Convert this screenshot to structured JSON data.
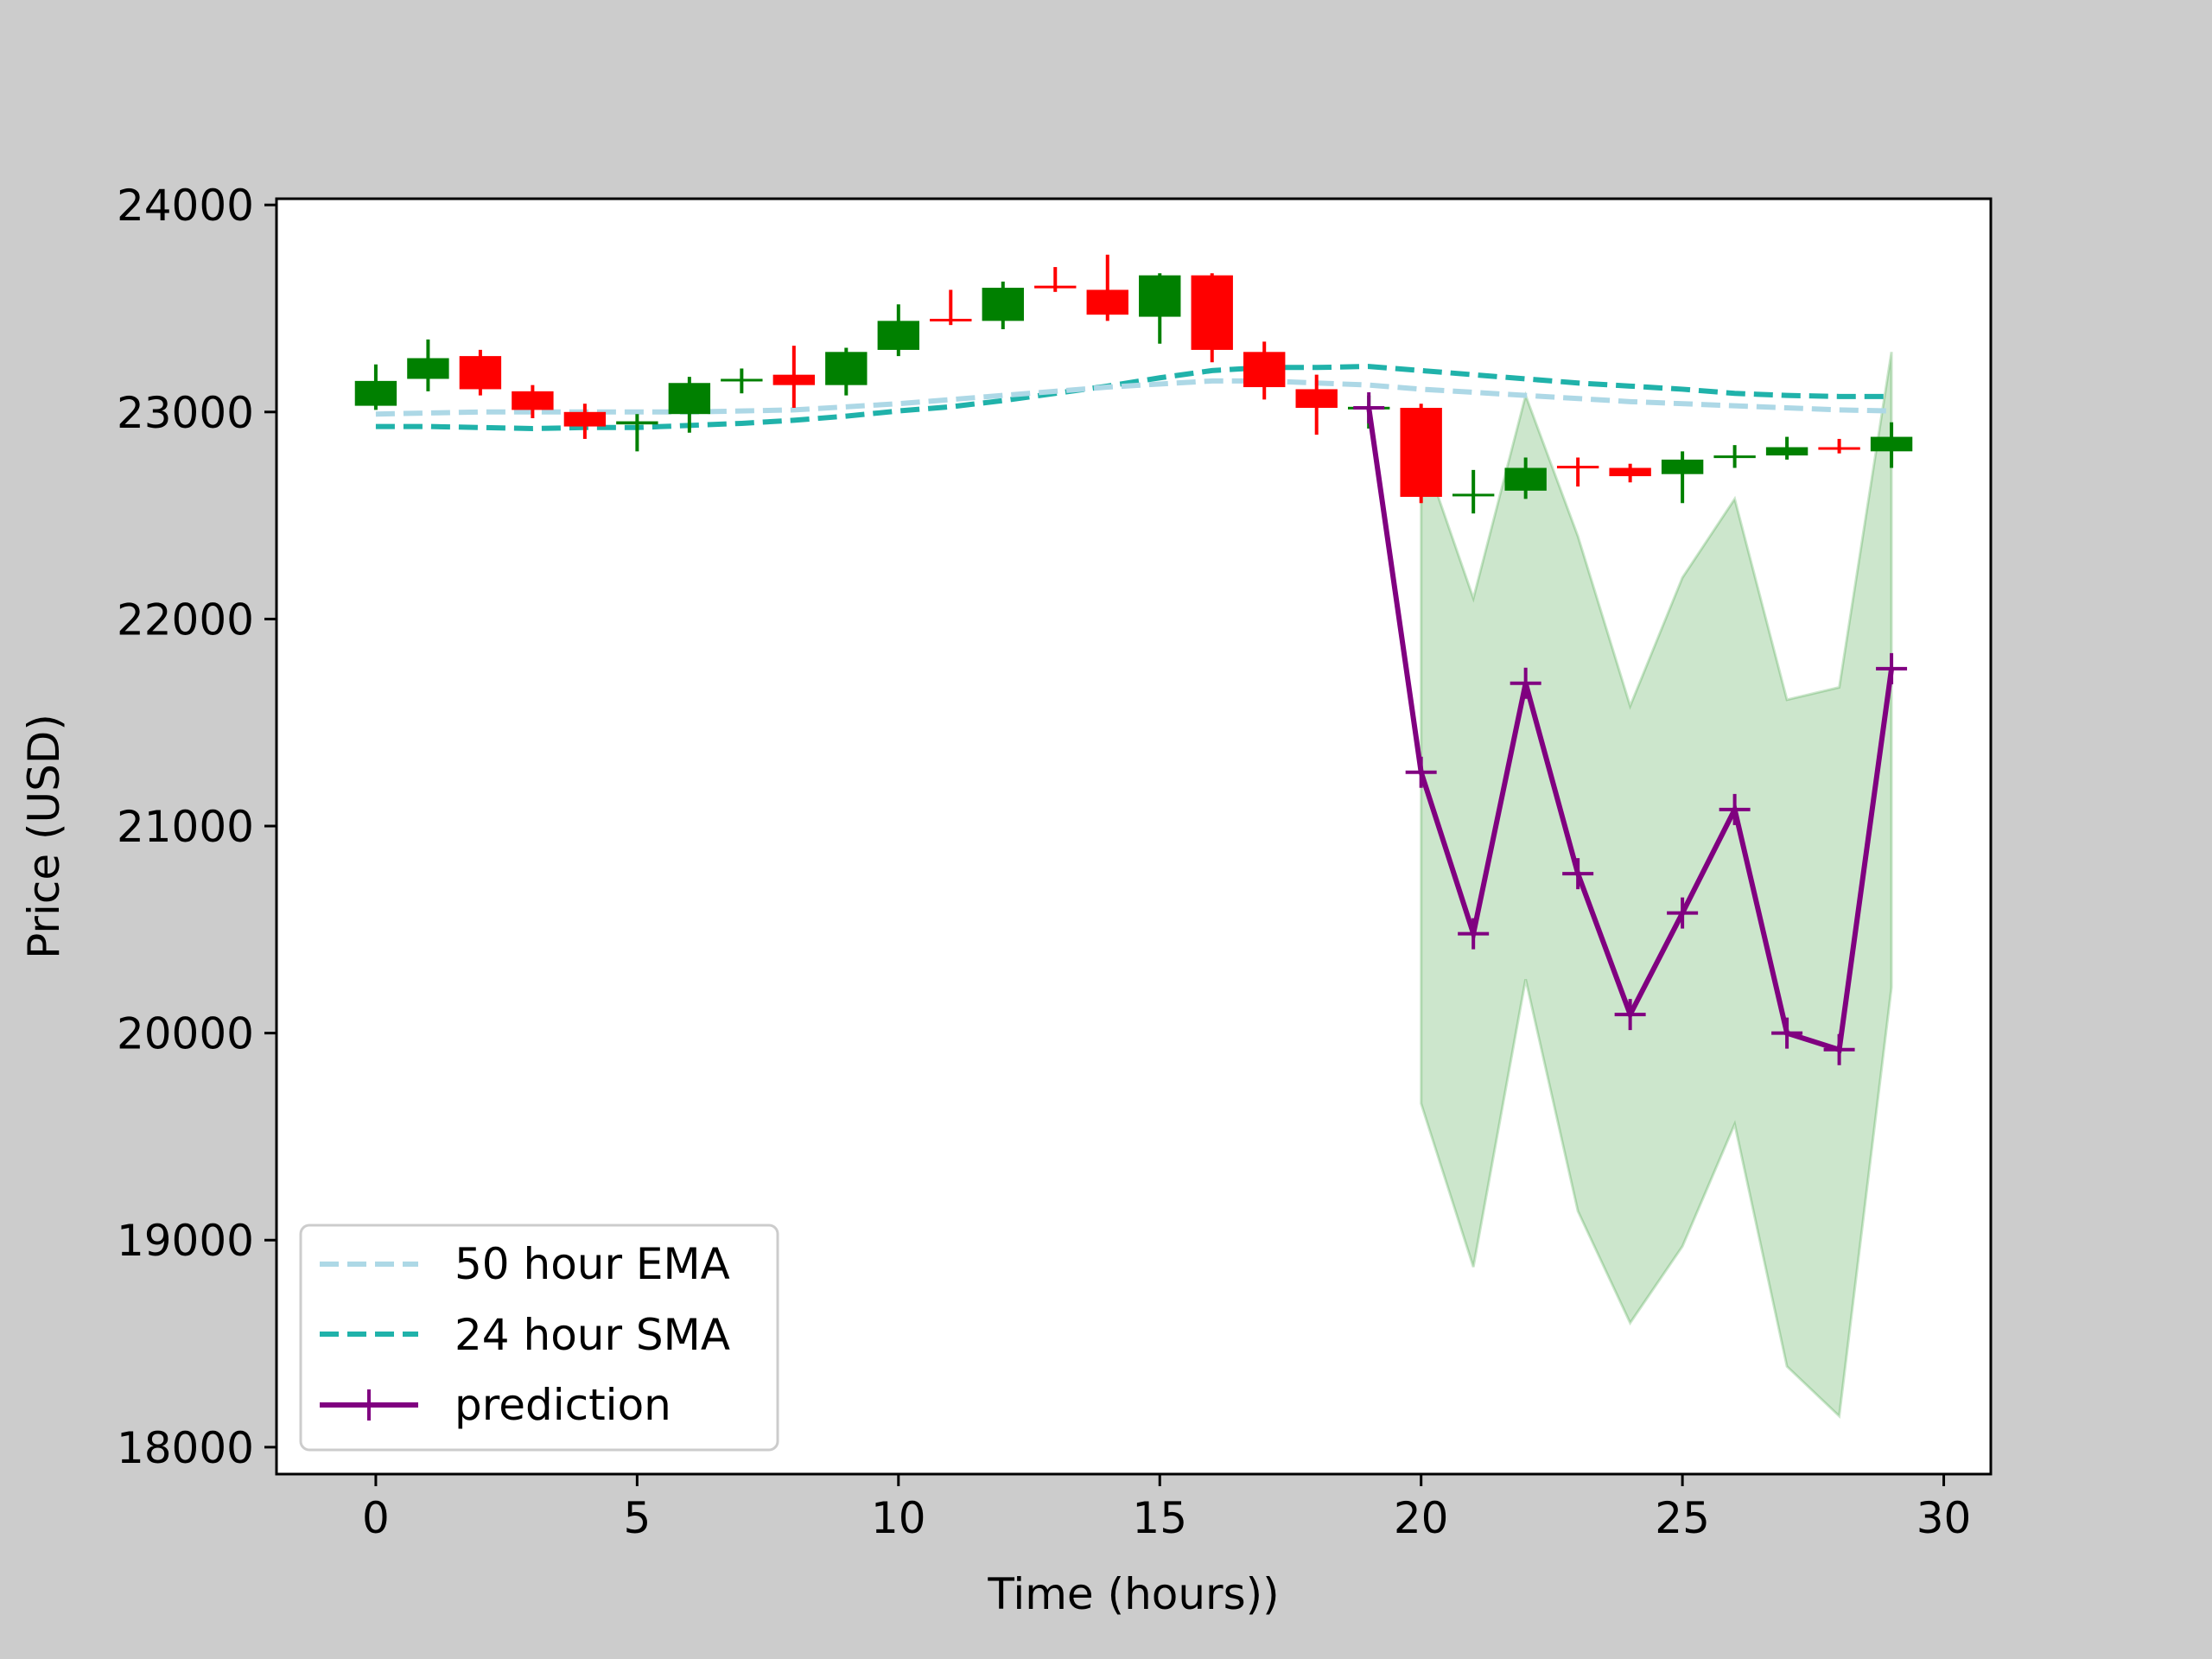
{
  "chart_data": {
    "type": "candlestick",
    "title": "",
    "xlabel": "Time (hours))",
    "ylabel": "Price (USD)",
    "xlim": [
      -1.9,
      30.9
    ],
    "ylim": [
      17870,
      24030
    ],
    "x_ticks": [
      0,
      5,
      10,
      15,
      20,
      25,
      30
    ],
    "y_ticks": [
      18000,
      19000,
      20000,
      21000,
      22000,
      23000,
      24000
    ],
    "grid": false,
    "colors": {
      "background": "#cccccc",
      "plot_bg": "#ffffff",
      "up": "#008000",
      "down": "#ff0000",
      "ema": "#add8e6",
      "sma": "#20b2aa",
      "prediction": "#800080",
      "band": "#008000"
    },
    "candles": [
      {
        "t": 0,
        "open": 23030,
        "close": 23150,
        "high": 23230,
        "low": 23010
      },
      {
        "t": 1,
        "open": 23160,
        "close": 23260,
        "high": 23350,
        "low": 23100
      },
      {
        "t": 2,
        "open": 23270,
        "close": 23110,
        "high": 23300,
        "low": 23080
      },
      {
        "t": 3,
        "open": 23100,
        "close": 23010,
        "high": 23130,
        "low": 22970
      },
      {
        "t": 4,
        "open": 23000,
        "close": 22930,
        "high": 23040,
        "low": 22870
      },
      {
        "t": 5,
        "open": 22940,
        "close": 22955,
        "high": 22990,
        "low": 22810
      },
      {
        "t": 6,
        "open": 22990,
        "close": 23140,
        "high": 23170,
        "low": 22900
      },
      {
        "t": 7,
        "open": 23150,
        "close": 23160,
        "high": 23210,
        "low": 23090
      },
      {
        "t": 8,
        "open": 23180,
        "close": 23130,
        "high": 23320,
        "low": 23020
      },
      {
        "t": 9,
        "open": 23130,
        "close": 23290,
        "high": 23310,
        "low": 23080
      },
      {
        "t": 10,
        "open": 23300,
        "close": 23440,
        "high": 23520,
        "low": 23270
      },
      {
        "t": 11,
        "open": 23450,
        "close": 23440,
        "high": 23590,
        "low": 23420
      },
      {
        "t": 12,
        "open": 23440,
        "close": 23600,
        "high": 23630,
        "low": 23400
      },
      {
        "t": 13,
        "open": 23610,
        "close": 23600,
        "high": 23700,
        "low": 23580
      },
      {
        "t": 14,
        "open": 23590,
        "close": 23470,
        "high": 23760,
        "low": 23440
      },
      {
        "t": 15,
        "open": 23460,
        "close": 23660,
        "high": 23670,
        "low": 23330
      },
      {
        "t": 16,
        "open": 23660,
        "close": 23300,
        "high": 23670,
        "low": 23240
      },
      {
        "t": 17,
        "open": 23290,
        "close": 23120,
        "high": 23340,
        "low": 23060
      },
      {
        "t": 18,
        "open": 23110,
        "close": 23020,
        "high": 23180,
        "low": 22890
      },
      {
        "t": 19,
        "open": 23020,
        "close": 23025,
        "high": 23080,
        "low": 22920
      },
      {
        "t": 20,
        "open": 23020,
        "close": 22590,
        "high": 23040,
        "low": 22560
      },
      {
        "t": 21,
        "open": 22600,
        "close": 22605,
        "high": 22720,
        "low": 22510
      },
      {
        "t": 22,
        "open": 22620,
        "close": 22730,
        "high": 22780,
        "low": 22580
      },
      {
        "t": 23,
        "open": 22740,
        "close": 22735,
        "high": 22780,
        "low": 22640
      },
      {
        "t": 24,
        "open": 22730,
        "close": 22690,
        "high": 22750,
        "low": 22660
      },
      {
        "t": 25,
        "open": 22700,
        "close": 22770,
        "high": 22810,
        "low": 22560
      },
      {
        "t": 26,
        "open": 22780,
        "close": 22790,
        "high": 22840,
        "low": 22730
      },
      {
        "t": 27,
        "open": 22790,
        "close": 22830,
        "high": 22880,
        "low": 22770
      },
      {
        "t": 28,
        "open": 22830,
        "close": 22820,
        "high": 22870,
        "low": 22800
      },
      {
        "t": 29,
        "open": 22810,
        "close": 22880,
        "high": 22950,
        "low": 22730
      }
    ],
    "series": [
      {
        "name": "50 hour EMA",
        "style": "dashed",
        "x": [
          0,
          2,
          4,
          6,
          8,
          10,
          12,
          14,
          16,
          17,
          18,
          19,
          20,
          22,
          24,
          26,
          28,
          29
        ],
        "values": [
          22990,
          23000,
          23000,
          23000,
          23010,
          23040,
          23080,
          23120,
          23150,
          23150,
          23140,
          23130,
          23110,
          23080,
          23050,
          23030,
          23010,
          23005
        ]
      },
      {
        "name": "24 hour SMA",
        "style": "dashed",
        "x": [
          0,
          1,
          2,
          3,
          4,
          5,
          6,
          7,
          8,
          9,
          10,
          11,
          12,
          13,
          14,
          15,
          16,
          17,
          18,
          19,
          20,
          21,
          22,
          23,
          24,
          25,
          26,
          27,
          28,
          29
        ],
        "values": [
          22930,
          22930,
          22925,
          22920,
          22925,
          22925,
          22935,
          22945,
          22960,
          22980,
          23005,
          23025,
          23055,
          23090,
          23125,
          23165,
          23200,
          23215,
          23215,
          23220,
          23200,
          23180,
          23160,
          23140,
          23125,
          23110,
          23090,
          23080,
          23075,
          23075
        ]
      },
      {
        "name": "prediction",
        "style": "solid",
        "marker": "+",
        "x": [
          19,
          20,
          21,
          22,
          23,
          24,
          25,
          26,
          27,
          28,
          29
        ],
        "values": [
          23020,
          21260,
          20480,
          21690,
          20770,
          20090,
          20580,
          21080,
          20000,
          19920,
          21760
        ]
      }
    ],
    "band": {
      "x": [
        20,
        21,
        22,
        23,
        24,
        25,
        26,
        27,
        28,
        29
      ],
      "upper": [
        22830,
        22100,
        23080,
        22400,
        21580,
        22200,
        22580,
        21610,
        21670,
        23290
      ],
      "lower": [
        19660,
        18870,
        20260,
        19140,
        18600,
        18970,
        19560,
        18390,
        18150,
        20220
      ]
    },
    "legend": {
      "position": "lower-left",
      "entries": [
        "50 hour EMA",
        "24 hour SMA",
        "prediction"
      ]
    }
  }
}
